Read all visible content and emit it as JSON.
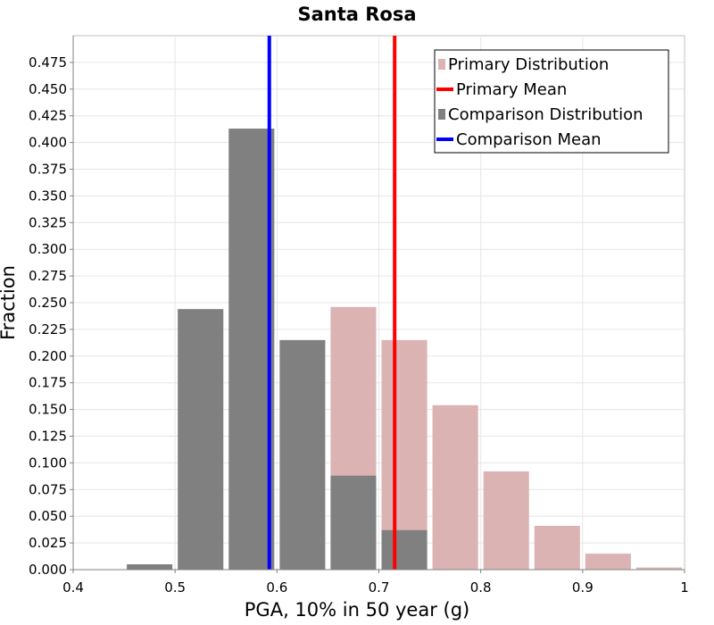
{
  "chart_data": {
    "type": "bar",
    "title": "Santa Rosa",
    "xlabel": "PGA, 10% in 50 year (g)",
    "ylabel": "Fraction",
    "xlim": [
      0.4,
      1.0
    ],
    "ylim": [
      0.0,
      0.5
    ],
    "x_ticks": [
      "0.4",
      "0.5",
      "0.6",
      "0.7",
      "0.8",
      "0.9",
      "1"
    ],
    "x_tick_values": [
      0.4,
      0.5,
      0.6,
      0.7,
      0.8,
      0.9,
      1.0
    ],
    "y_ticks": [
      "0.000",
      "0.025",
      "0.050",
      "0.075",
      "0.100",
      "0.125",
      "0.150",
      "0.175",
      "0.200",
      "0.225",
      "0.250",
      "0.275",
      "0.300",
      "0.325",
      "0.350",
      "0.375",
      "0.400",
      "0.425",
      "0.450",
      "0.475"
    ],
    "y_tick_values": [
      0,
      0.025,
      0.05,
      0.075,
      0.1,
      0.125,
      0.15,
      0.175,
      0.2,
      0.225,
      0.25,
      0.275,
      0.3,
      0.325,
      0.35,
      0.375,
      0.4,
      0.425,
      0.45,
      0.475
    ],
    "bin_width": 0.05,
    "grid": true,
    "legend_position": "top-right",
    "series": [
      {
        "name": "Primary Distribution",
        "kind": "histogram",
        "color": "#dbb3b3",
        "bin_centers": [
          0.675,
          0.725,
          0.775,
          0.825,
          0.875,
          0.925,
          0.975
        ],
        "values": [
          0.246,
          0.215,
          0.154,
          0.092,
          0.041,
          0.015,
          0.002
        ]
      },
      {
        "name": "Comparison Distribution",
        "kind": "histogram",
        "color": "#808080",
        "bin_centers": [
          0.475,
          0.525,
          0.575,
          0.625,
          0.675,
          0.725
        ],
        "values": [
          0.005,
          0.244,
          0.413,
          0.215,
          0.088,
          0.037
        ]
      },
      {
        "name": "Primary Mean",
        "kind": "vline",
        "color": "#ff0000",
        "x": 0.7155
      },
      {
        "name": "Comparison Mean",
        "kind": "vline",
        "color": "#0000ff",
        "x": 0.5925
      }
    ],
    "legend": [
      {
        "label": "Primary Distribution",
        "color": "#dbb3b3",
        "marker": "square"
      },
      {
        "label": "Primary Mean",
        "color": "#ff0000",
        "marker": "line"
      },
      {
        "label": "Comparison Distribution",
        "color": "#808080",
        "marker": "square"
      },
      {
        "label": "Comparison Mean",
        "color": "#0000ff",
        "marker": "line"
      }
    ]
  }
}
